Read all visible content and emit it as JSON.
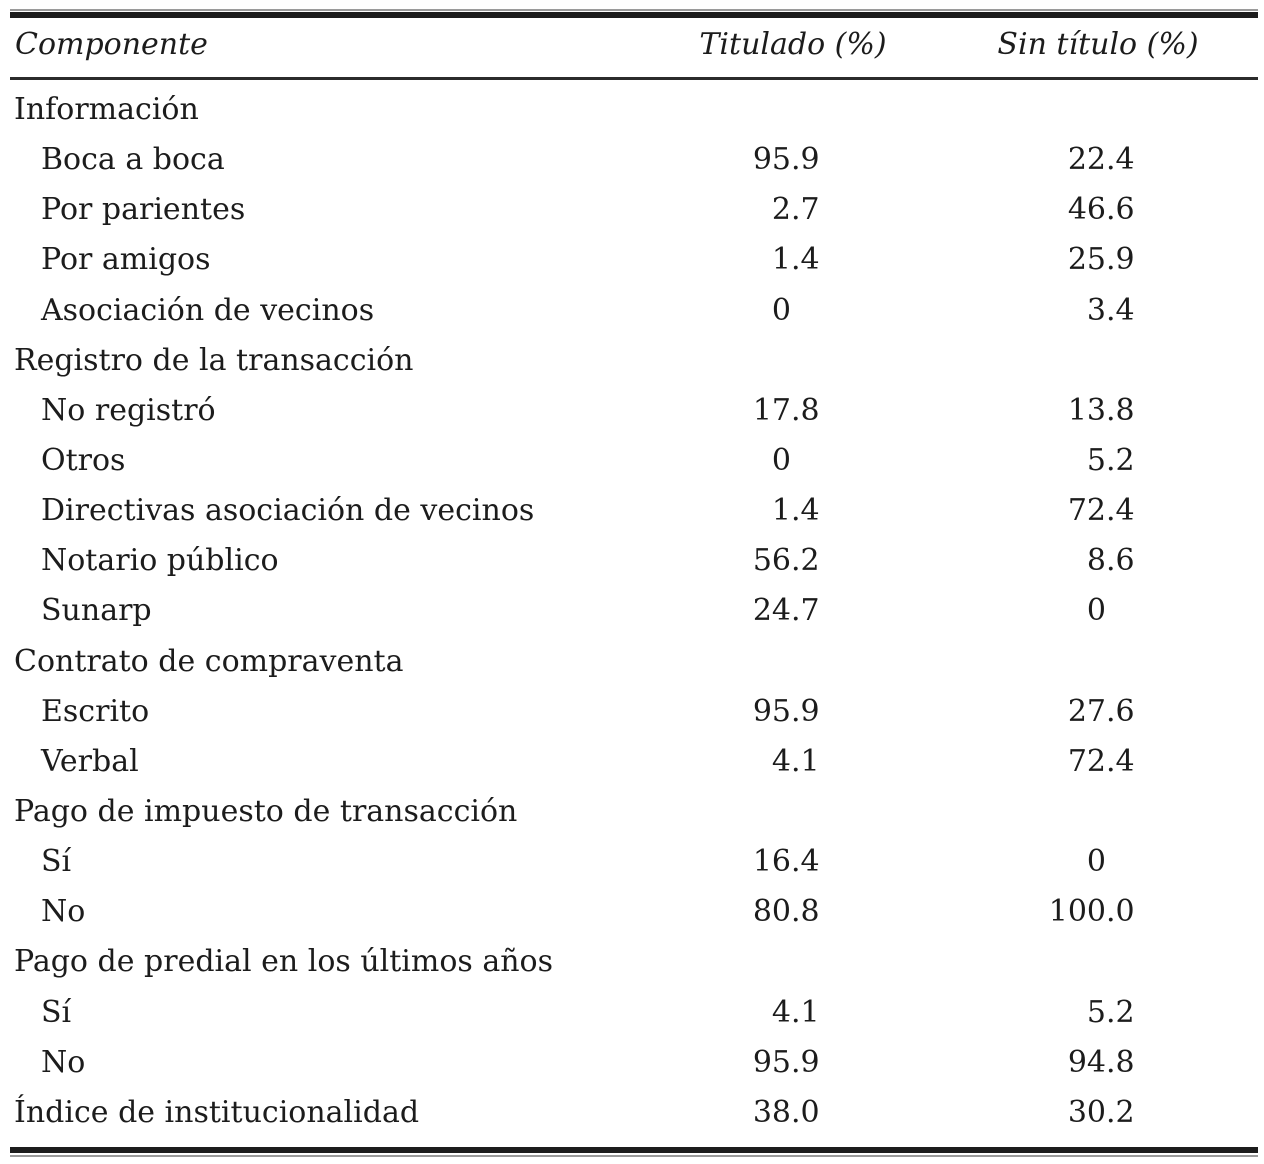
{
  "colors": {
    "text": "#1c1c1c",
    "rule_thick": "#1c1c1c",
    "rule_thin": "#9a9a9a"
  },
  "table": {
    "columns": [
      "Componente",
      "Titulado (%)",
      "Sin título (%)"
    ],
    "rows": [
      {
        "label": "Información",
        "indent": false,
        "titulado": null,
        "sin_titulo": null
      },
      {
        "label": "Boca a boca",
        "indent": true,
        "titulado": "95.9",
        "sin_titulo": "22.4"
      },
      {
        "label": "Por parientes",
        "indent": true,
        "titulado": "2.7",
        "sin_titulo": "46.6"
      },
      {
        "label": "Por amigos",
        "indent": true,
        "titulado": "1.4",
        "sin_titulo": "25.9"
      },
      {
        "label": "Asociación de vecinos",
        "indent": true,
        "titulado": "0",
        "sin_titulo": "3.4"
      },
      {
        "label": "Registro de la transacción",
        "indent": false,
        "titulado": null,
        "sin_titulo": null
      },
      {
        "label": "No registró",
        "indent": true,
        "titulado": "17.8",
        "sin_titulo": "13.8"
      },
      {
        "label": "Otros",
        "indent": true,
        "titulado": "0",
        "sin_titulo": "5.2"
      },
      {
        "label": "Directivas asociación de vecinos",
        "indent": true,
        "titulado": "1.4",
        "sin_titulo": "72.4"
      },
      {
        "label": "Notario público",
        "indent": true,
        "titulado": "56.2",
        "sin_titulo": "8.6"
      },
      {
        "label": "Sunarp",
        "indent": true,
        "titulado": "24.7",
        "sin_titulo": "0"
      },
      {
        "label": "Contrato de compraventa",
        "indent": false,
        "titulado": null,
        "sin_titulo": null
      },
      {
        "label": "Escrito",
        "indent": true,
        "titulado": "95.9",
        "sin_titulo": "27.6"
      },
      {
        "label": "Verbal",
        "indent": true,
        "titulado": "4.1",
        "sin_titulo": "72.4"
      },
      {
        "label": "Pago de impuesto de transacción",
        "indent": false,
        "titulado": null,
        "sin_titulo": null
      },
      {
        "label": "Sí",
        "indent": true,
        "titulado": "16.4",
        "sin_titulo": "0"
      },
      {
        "label": "No",
        "indent": true,
        "titulado": "80.8",
        "sin_titulo": "100.0"
      },
      {
        "label": "Pago de predial en los últimos años",
        "indent": false,
        "titulado": null,
        "sin_titulo": null
      },
      {
        "label": "Sí",
        "indent": true,
        "titulado": "4.1",
        "sin_titulo": "5.2"
      },
      {
        "label": "No",
        "indent": true,
        "titulado": "95.9",
        "sin_titulo": "94.8"
      },
      {
        "label": "Índice de institucionalidad",
        "indent": false,
        "titulado": "38.0",
        "sin_titulo": "30.2"
      }
    ]
  }
}
